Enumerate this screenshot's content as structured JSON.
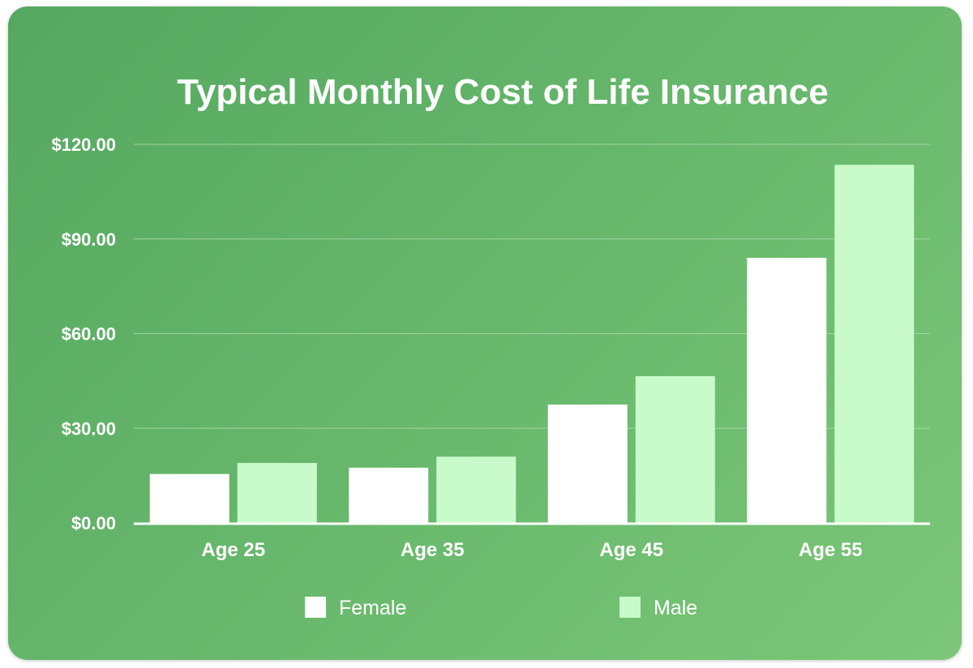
{
  "chart_data": {
    "type": "bar",
    "title": "Typical Monthly Cost of Life Insurance",
    "xlabel": "",
    "ylabel": "",
    "categories": [
      "Age 25",
      "Age 35",
      "Age 45",
      "Age 55"
    ],
    "series": [
      {
        "name": "Female",
        "values": [
          15.5,
          17.5,
          37.5,
          84.0
        ],
        "color": "#ffffff"
      },
      {
        "name": "Male",
        "values": [
          19.0,
          21.0,
          46.5,
          113.5
        ],
        "color": "#c8fbc9"
      }
    ],
    "ylim": [
      0,
      120
    ],
    "yticks": [
      0,
      30,
      60,
      90,
      120
    ],
    "ytick_labels": [
      "$0.00",
      "$30.00",
      "$60.00",
      "$90.00",
      "$120.00"
    ],
    "grid": true,
    "legend_position": "bottom",
    "colors": {
      "background_start": "#55a860",
      "background_end": "#7cc779",
      "grid": "#a8d8a8",
      "axis": "#ffffff"
    }
  }
}
